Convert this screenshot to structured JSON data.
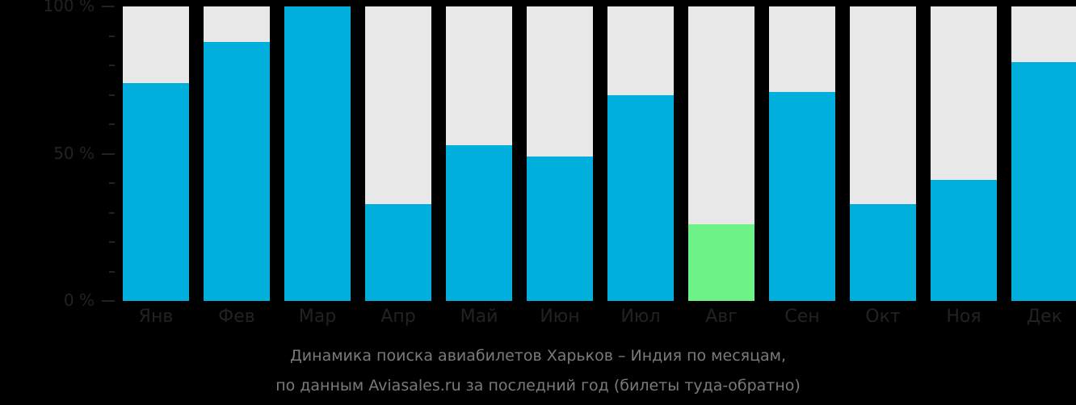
{
  "chart_data": {
    "type": "bar",
    "title": "Динамика поиска авиабилетов Харьков – Индия по месяцам,",
    "subtitle": "по данным Aviasales.ru за последний год (билеты туда-обратно)",
    "xlabel": "",
    "ylabel": "",
    "ylim": [
      0,
      100
    ],
    "yticks": [
      "0 %",
      "50 %",
      "100 %"
    ],
    "categories": [
      "Янв",
      "Фев",
      "Мар",
      "Апр",
      "Май",
      "Июн",
      "Июл",
      "Авг",
      "Сен",
      "Окт",
      "Ноя",
      "Дек"
    ],
    "values": [
      74,
      88,
      100,
      33,
      53,
      49,
      70,
      26,
      71,
      33,
      41,
      81
    ],
    "highlight_index": 7,
    "colors": {
      "bar": "#00afdb",
      "highlight": "#6cf287",
      "track": "#e8e8e8",
      "background": "#000000",
      "axis_text": "#222222"
    },
    "grid": false,
    "legend": "none"
  },
  "caption": {
    "line1": "Динамика поиска авиабилетов Харьков – Индия по месяцам,",
    "line2": "по данным Aviasales.ru за последний год (билеты туда-обратно)"
  }
}
